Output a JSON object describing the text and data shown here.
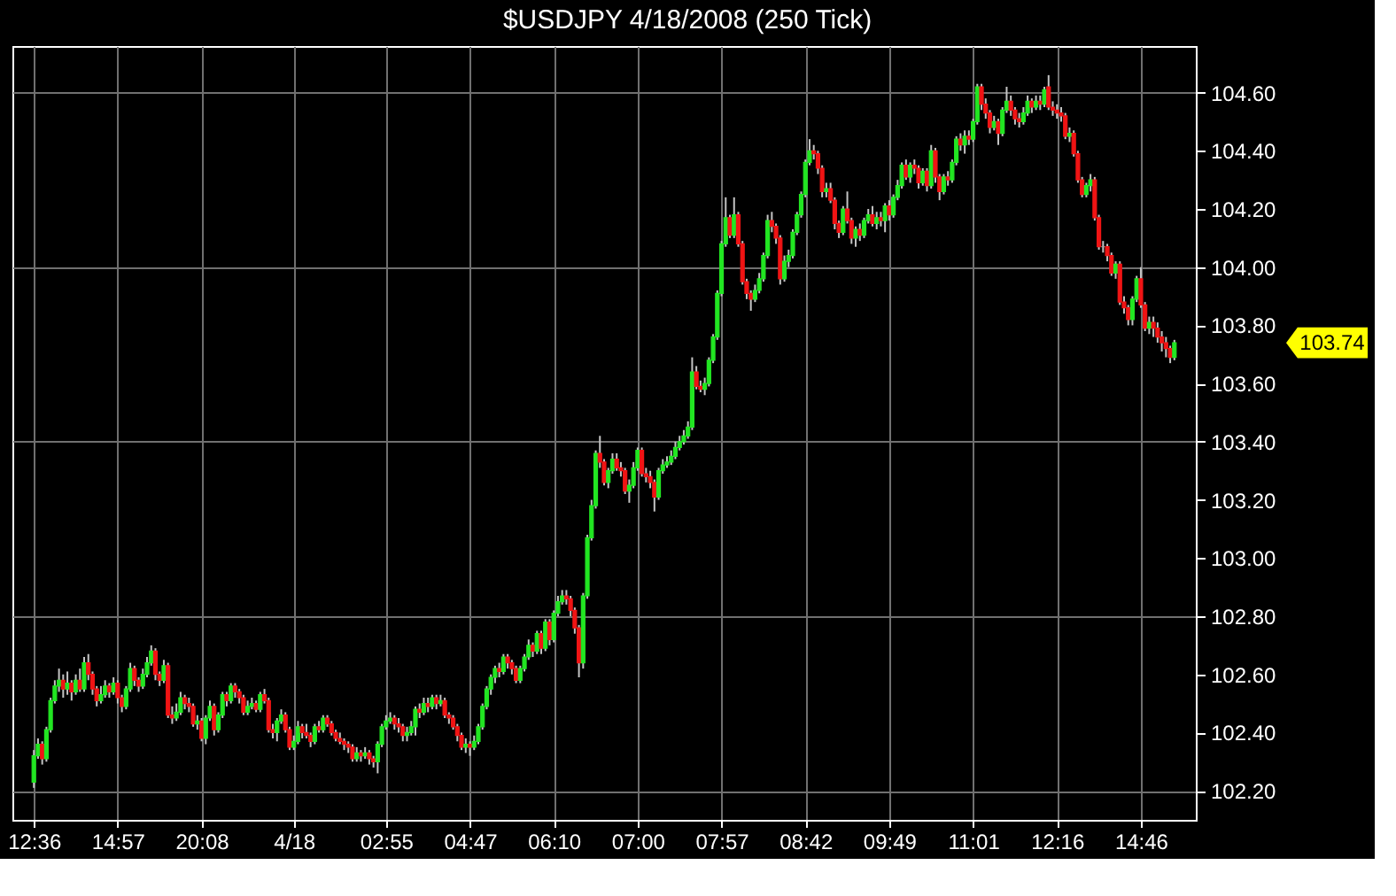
{
  "chart_data": {
    "type": "candlestick",
    "title": "$USDJPY 4/18/2008 (250 Tick)",
    "categories": [
      "12:36",
      null,
      null,
      null,
      null,
      null,
      null,
      null,
      null,
      null,
      null,
      null,
      null,
      null,
      null,
      null,
      null,
      null,
      null,
      null,
      "14:57",
      null,
      null,
      null,
      null,
      null,
      null,
      null,
      null,
      null,
      null,
      null,
      null,
      null,
      null,
      null,
      null,
      null,
      null,
      null,
      "20:08",
      null,
      null,
      null,
      null,
      null,
      null,
      null,
      null,
      null,
      null,
      null,
      null,
      null,
      null,
      null,
      null,
      null,
      null,
      null,
      null,
      null,
      "4/18",
      null,
      null,
      null,
      null,
      null,
      null,
      null,
      null,
      null,
      null,
      null,
      null,
      null,
      null,
      null,
      null,
      null,
      null,
      null,
      null,
      null,
      "02:55",
      null,
      null,
      null,
      null,
      null,
      null,
      null,
      null,
      null,
      null,
      null,
      null,
      null,
      null,
      null,
      null,
      null,
      null,
      null,
      "04:47",
      null,
      null,
      null,
      null,
      null,
      null,
      null,
      null,
      null,
      null,
      null,
      null,
      null,
      null,
      null,
      null,
      null,
      null,
      null,
      "06:10",
      null,
      null,
      null,
      null,
      null,
      null,
      null,
      null,
      null,
      null,
      null,
      null,
      null,
      null,
      null,
      null,
      null,
      null,
      null,
      "07:00",
      null,
      null,
      null,
      null,
      null,
      null,
      null,
      null,
      null,
      null,
      null,
      null,
      null,
      null,
      null,
      null,
      null,
      null,
      null,
      "07:57",
      null,
      null,
      null,
      null,
      null,
      null,
      null,
      null,
      null,
      null,
      null,
      null,
      null,
      null,
      null,
      null,
      null,
      null,
      null,
      "08:42",
      null,
      null,
      null,
      null,
      null,
      null,
      null,
      null,
      null,
      null,
      null,
      null,
      null,
      null,
      null,
      null,
      null,
      null,
      null,
      "09:49",
      null,
      null,
      null,
      null,
      null,
      null,
      null,
      null,
      null,
      null,
      null,
      null,
      null,
      null,
      null,
      null,
      null,
      null,
      null,
      "11:01",
      null,
      null,
      null,
      null,
      null,
      null,
      null,
      null,
      null,
      null,
      null,
      null,
      null,
      null,
      null,
      null,
      null,
      null,
      null,
      "12:16",
      null,
      null,
      null,
      null,
      null,
      null,
      null,
      null,
      null,
      null,
      null,
      null,
      null,
      null,
      null,
      null,
      null,
      null,
      null,
      "14:46",
      null,
      null,
      null,
      null,
      null,
      null,
      null,
      null
    ],
    "ohlc": [
      [
        102.23,
        102.34,
        102.21,
        102.32
      ],
      [
        102.32,
        102.38,
        102.31,
        102.36
      ],
      [
        102.36,
        102.37,
        102.29,
        102.31
      ],
      [
        102.31,
        102.42,
        102.3,
        102.41
      ],
      [
        102.41,
        102.52,
        102.4,
        102.51
      ],
      [
        102.51,
        102.58,
        102.5,
        102.56
      ],
      [
        102.56,
        102.62,
        102.54,
        102.58
      ],
      [
        102.58,
        102.6,
        102.52,
        102.55
      ],
      [
        102.55,
        102.61,
        102.53,
        102.57
      ],
      [
        102.57,
        102.58,
        102.51,
        102.54
      ],
      [
        102.54,
        102.6,
        102.53,
        102.58
      ],
      [
        102.58,
        102.62,
        102.54,
        102.55
      ],
      [
        102.55,
        102.66,
        102.54,
        102.64
      ],
      [
        102.64,
        102.67,
        102.58,
        102.6
      ],
      [
        102.6,
        102.61,
        102.53,
        102.55
      ],
      [
        102.55,
        102.56,
        102.49,
        102.51
      ],
      [
        102.51,
        102.56,
        102.5,
        102.53
      ],
      [
        102.53,
        102.58,
        102.52,
        102.56
      ],
      [
        102.56,
        102.57,
        102.52,
        102.54
      ],
      [
        102.54,
        102.59,
        102.53,
        102.57
      ],
      [
        102.57,
        102.58,
        102.5,
        102.52
      ],
      [
        102.52,
        102.53,
        102.47,
        102.49
      ],
      [
        102.49,
        102.56,
        102.48,
        102.55
      ],
      [
        102.55,
        102.64,
        102.54,
        102.62
      ],
      [
        102.62,
        102.63,
        102.56,
        102.58
      ],
      [
        102.58,
        102.59,
        102.54,
        102.56
      ],
      [
        102.56,
        102.62,
        102.55,
        102.6
      ],
      [
        102.6,
        102.66,
        102.59,
        102.64
      ],
      [
        102.64,
        102.7,
        102.63,
        102.68
      ],
      [
        102.68,
        102.69,
        102.58,
        102.6
      ],
      [
        102.6,
        102.61,
        102.56,
        102.58
      ],
      [
        102.58,
        102.65,
        102.57,
        102.63
      ],
      [
        102.63,
        102.64,
        102.45,
        102.46
      ],
      [
        102.46,
        102.49,
        102.43,
        102.45
      ],
      [
        102.45,
        102.5,
        102.44,
        102.47
      ],
      [
        102.47,
        102.54,
        102.46,
        102.52
      ],
      [
        102.52,
        102.53,
        102.48,
        102.5
      ],
      [
        102.5,
        102.52,
        102.47,
        102.49
      ],
      [
        102.49,
        102.5,
        102.42,
        102.43
      ],
      [
        102.43,
        102.46,
        102.41,
        102.44
      ],
      [
        102.44,
        102.45,
        102.37,
        102.38
      ],
      [
        102.38,
        102.46,
        102.36,
        102.45
      ],
      [
        102.45,
        102.51,
        102.44,
        102.49
      ],
      [
        102.49,
        102.5,
        102.39,
        102.41
      ],
      [
        102.41,
        102.47,
        102.4,
        102.46
      ],
      [
        102.46,
        102.54,
        102.45,
        102.53
      ],
      [
        102.53,
        102.54,
        102.49,
        102.51
      ],
      [
        102.51,
        102.57,
        102.5,
        102.56
      ],
      [
        102.56,
        102.57,
        102.52,
        102.54
      ],
      [
        102.54,
        102.55,
        102.5,
        102.52
      ],
      [
        102.52,
        102.53,
        102.46,
        102.47
      ],
      [
        102.47,
        102.51,
        102.46,
        102.49
      ],
      [
        102.49,
        102.52,
        102.48,
        102.5
      ],
      [
        102.5,
        102.51,
        102.47,
        102.48
      ],
      [
        102.48,
        102.54,
        102.47,
        102.53
      ],
      [
        102.53,
        102.55,
        102.5,
        102.51
      ],
      [
        102.51,
        102.52,
        102.4,
        102.41
      ],
      [
        102.41,
        102.43,
        102.38,
        102.4
      ],
      [
        102.4,
        102.45,
        102.37,
        102.44
      ],
      [
        102.44,
        102.48,
        102.43,
        102.46
      ],
      [
        102.46,
        102.47,
        102.4,
        102.41
      ],
      [
        102.41,
        102.42,
        102.34,
        102.35
      ],
      [
        102.35,
        102.39,
        102.34,
        102.37
      ],
      [
        102.37,
        102.44,
        102.36,
        102.42
      ],
      [
        102.42,
        102.43,
        102.38,
        102.4
      ],
      [
        102.4,
        102.43,
        102.38,
        102.39
      ],
      [
        102.39,
        102.4,
        102.35,
        102.37
      ],
      [
        102.37,
        102.43,
        102.36,
        102.42
      ],
      [
        102.42,
        102.44,
        102.4,
        102.41
      ],
      [
        102.41,
        102.46,
        102.4,
        102.45
      ],
      [
        102.45,
        102.46,
        102.42,
        102.43
      ],
      [
        102.43,
        102.44,
        102.39,
        102.4
      ],
      [
        102.4,
        102.41,
        102.37,
        102.38
      ],
      [
        102.38,
        102.4,
        102.36,
        102.37
      ],
      [
        102.37,
        102.38,
        102.34,
        102.36
      ],
      [
        102.36,
        102.37,
        102.33,
        102.35
      ],
      [
        102.35,
        102.36,
        102.3,
        102.31
      ],
      [
        102.31,
        102.35,
        102.3,
        102.33
      ],
      [
        102.33,
        102.34,
        102.3,
        102.32
      ],
      [
        102.32,
        102.35,
        102.31,
        102.33
      ],
      [
        102.33,
        102.34,
        102.29,
        102.31
      ],
      [
        102.31,
        102.32,
        102.28,
        102.3
      ],
      [
        102.3,
        102.37,
        102.26,
        102.36
      ],
      [
        102.36,
        102.43,
        102.35,
        102.42
      ],
      [
        102.42,
        102.46,
        102.41,
        102.44
      ],
      [
        102.44,
        102.47,
        102.43,
        102.45
      ],
      [
        102.45,
        102.46,
        102.41,
        102.43
      ],
      [
        102.43,
        102.45,
        102.4,
        102.42
      ],
      [
        102.42,
        102.43,
        102.37,
        102.39
      ],
      [
        102.39,
        102.42,
        102.37,
        102.4
      ],
      [
        102.4,
        102.44,
        102.39,
        102.42
      ],
      [
        102.42,
        102.49,
        102.39,
        102.48
      ],
      [
        102.48,
        102.5,
        102.45,
        102.47
      ],
      [
        102.47,
        102.52,
        102.46,
        102.5
      ],
      [
        102.5,
        102.52,
        102.47,
        102.49
      ],
      [
        102.49,
        102.53,
        102.48,
        102.52
      ],
      [
        102.52,
        102.53,
        102.48,
        102.5
      ],
      [
        102.5,
        102.53,
        102.49,
        102.51
      ],
      [
        102.51,
        102.52,
        102.45,
        102.46
      ],
      [
        102.46,
        102.47,
        102.43,
        102.45
      ],
      [
        102.45,
        102.46,
        102.41,
        102.42
      ],
      [
        102.42,
        102.43,
        102.37,
        102.39
      ],
      [
        102.39,
        102.4,
        102.34,
        102.35
      ],
      [
        102.35,
        102.38,
        102.33,
        102.36
      ],
      [
        102.36,
        102.37,
        102.32,
        102.35
      ],
      [
        102.35,
        102.39,
        102.34,
        102.37
      ],
      [
        102.37,
        102.43,
        102.36,
        102.42
      ],
      [
        102.42,
        102.5,
        102.41,
        102.49
      ],
      [
        102.49,
        102.56,
        102.48,
        102.55
      ],
      [
        102.55,
        102.6,
        102.53,
        102.59
      ],
      [
        102.59,
        102.63,
        102.57,
        102.62
      ],
      [
        102.62,
        102.64,
        102.59,
        102.61
      ],
      [
        102.61,
        102.67,
        102.6,
        102.66
      ],
      [
        102.66,
        102.67,
        102.62,
        102.64
      ],
      [
        102.64,
        102.65,
        102.6,
        102.62
      ],
      [
        102.62,
        102.63,
        102.57,
        102.58
      ],
      [
        102.58,
        102.63,
        102.57,
        102.62
      ],
      [
        102.62,
        102.67,
        102.61,
        102.66
      ],
      [
        102.66,
        102.72,
        102.65,
        102.7
      ],
      [
        102.7,
        102.71,
        102.66,
        102.68
      ],
      [
        102.68,
        102.75,
        102.67,
        102.74
      ],
      [
        102.74,
        102.75,
        102.67,
        102.69
      ],
      [
        102.69,
        102.79,
        102.68,
        102.78
      ],
      [
        102.78,
        102.79,
        102.7,
        102.72
      ],
      [
        102.72,
        102.82,
        102.71,
        102.81
      ],
      [
        102.81,
        102.87,
        102.8,
        102.85
      ],
      [
        102.85,
        102.89,
        102.84,
        102.87
      ],
      [
        102.87,
        102.89,
        102.84,
        102.86
      ],
      [
        102.86,
        102.87,
        102.8,
        102.82
      ],
      [
        102.82,
        102.83,
        102.74,
        102.76
      ],
      [
        102.76,
        102.77,
        102.59,
        102.64
      ],
      [
        102.64,
        102.88,
        102.62,
        102.87
      ],
      [
        102.87,
        103.08,
        102.86,
        103.07
      ],
      [
        103.07,
        103.2,
        103.06,
        103.18
      ],
      [
        103.18,
        103.37,
        103.17,
        103.36
      ],
      [
        103.36,
        103.42,
        103.31,
        103.33
      ],
      [
        103.33,
        103.34,
        103.25,
        103.26
      ],
      [
        103.26,
        103.31,
        103.24,
        103.3
      ],
      [
        103.3,
        103.36,
        103.29,
        103.34
      ],
      [
        103.34,
        103.36,
        103.3,
        103.31
      ],
      [
        103.31,
        103.33,
        103.28,
        103.3
      ],
      [
        103.3,
        103.31,
        103.22,
        103.23
      ],
      [
        103.23,
        103.27,
        103.19,
        103.25
      ],
      [
        103.25,
        103.33,
        103.24,
        103.31
      ],
      [
        103.31,
        103.38,
        103.3,
        103.37
      ],
      [
        103.37,
        103.38,
        103.28,
        103.29
      ],
      [
        103.29,
        103.31,
        103.26,
        103.28
      ],
      [
        103.28,
        103.3,
        103.24,
        103.26
      ],
      [
        103.26,
        103.27,
        103.16,
        103.21
      ],
      [
        103.21,
        103.31,
        103.2,
        103.3
      ],
      [
        103.3,
        103.34,
        103.29,
        103.32
      ],
      [
        103.32,
        103.35,
        103.31,
        103.33
      ],
      [
        103.33,
        103.37,
        103.32,
        103.35
      ],
      [
        103.35,
        103.4,
        103.34,
        103.38
      ],
      [
        103.38,
        103.42,
        103.37,
        103.4
      ],
      [
        103.4,
        103.44,
        103.39,
        103.42
      ],
      [
        103.42,
        103.47,
        103.41,
        103.45
      ],
      [
        103.45,
        103.69,
        103.44,
        103.64
      ],
      [
        103.64,
        103.66,
        103.58,
        103.59
      ],
      [
        103.59,
        103.61,
        103.57,
        103.58
      ],
      [
        103.58,
        103.62,
        103.56,
        103.6
      ],
      [
        103.6,
        103.69,
        103.59,
        103.68
      ],
      [
        103.68,
        103.77,
        103.67,
        103.76
      ],
      [
        103.76,
        103.92,
        103.75,
        103.91
      ],
      [
        103.91,
        104.09,
        103.9,
        104.08
      ],
      [
        104.08,
        104.24,
        104.07,
        104.17
      ],
      [
        104.17,
        104.18,
        104.1,
        104.11
      ],
      [
        104.11,
        104.24,
        104.1,
        104.18
      ],
      [
        104.18,
        104.19,
        104.07,
        104.08
      ],
      [
        104.08,
        104.09,
        103.94,
        103.95
      ],
      [
        103.95,
        103.96,
        103.89,
        103.91
      ],
      [
        103.91,
        103.92,
        103.85,
        103.89
      ],
      [
        103.89,
        103.94,
        103.88,
        103.92
      ],
      [
        103.92,
        103.98,
        103.91,
        103.96
      ],
      [
        103.96,
        104.05,
        103.95,
        104.04
      ],
      [
        104.04,
        104.18,
        104.03,
        104.16
      ],
      [
        104.16,
        104.19,
        104.12,
        104.14
      ],
      [
        104.14,
        104.15,
        104.08,
        104.1
      ],
      [
        104.1,
        104.11,
        103.94,
        103.96
      ],
      [
        103.96,
        104.04,
        103.95,
        104.02
      ],
      [
        104.02,
        104.06,
        104.0,
        104.04
      ],
      [
        104.04,
        104.13,
        104.03,
        104.12
      ],
      [
        104.12,
        104.19,
        104.11,
        104.18
      ],
      [
        104.18,
        104.26,
        104.17,
        104.25
      ],
      [
        104.25,
        104.37,
        104.24,
        104.36
      ],
      [
        104.36,
        104.44,
        104.35,
        104.4
      ],
      [
        104.4,
        104.42,
        104.37,
        104.39
      ],
      [
        104.39,
        104.4,
        104.32,
        104.34
      ],
      [
        104.34,
        104.35,
        104.24,
        104.26
      ],
      [
        104.26,
        104.29,
        104.24,
        104.27
      ],
      [
        104.27,
        104.29,
        104.22,
        104.23
      ],
      [
        104.23,
        104.24,
        104.13,
        104.15
      ],
      [
        104.15,
        104.16,
        104.1,
        104.12
      ],
      [
        104.12,
        104.21,
        104.11,
        104.2
      ],
      [
        104.2,
        104.26,
        104.15,
        104.16
      ],
      [
        104.16,
        104.17,
        104.08,
        104.1
      ],
      [
        104.1,
        104.14,
        104.07,
        104.13
      ],
      [
        104.13,
        104.15,
        104.09,
        104.11
      ],
      [
        104.11,
        104.17,
        104.1,
        104.16
      ],
      [
        104.16,
        104.2,
        104.15,
        104.18
      ],
      [
        104.18,
        104.21,
        104.14,
        104.15
      ],
      [
        104.15,
        104.19,
        104.13,
        104.17
      ],
      [
        104.17,
        104.19,
        104.14,
        104.16
      ],
      [
        104.16,
        104.22,
        104.12,
        104.21
      ],
      [
        104.21,
        104.23,
        104.16,
        104.18
      ],
      [
        104.18,
        104.25,
        104.17,
        104.24
      ],
      [
        104.24,
        104.3,
        104.23,
        104.28
      ],
      [
        104.28,
        104.36,
        104.27,
        104.35
      ],
      [
        104.35,
        104.37,
        104.3,
        104.31
      ],
      [
        104.31,
        104.36,
        104.29,
        104.35
      ],
      [
        104.35,
        104.37,
        104.32,
        104.34
      ],
      [
        104.34,
        104.35,
        104.27,
        104.29
      ],
      [
        104.29,
        104.34,
        104.28,
        104.33
      ],
      [
        104.33,
        104.34,
        104.26,
        104.28
      ],
      [
        104.28,
        104.42,
        104.27,
        104.4
      ],
      [
        104.4,
        104.41,
        104.29,
        104.31
      ],
      [
        104.31,
        104.32,
        104.23,
        104.26
      ],
      [
        104.26,
        104.32,
        104.25,
        104.31
      ],
      [
        104.31,
        104.33,
        104.28,
        104.3
      ],
      [
        104.3,
        104.37,
        104.29,
        104.36
      ],
      [
        104.36,
        104.45,
        104.35,
        104.44
      ],
      [
        104.44,
        104.46,
        104.4,
        104.42
      ],
      [
        104.42,
        104.47,
        104.39,
        104.45
      ],
      [
        104.45,
        104.47,
        104.42,
        104.44
      ],
      [
        104.44,
        104.51,
        104.43,
        104.5
      ],
      [
        104.5,
        104.63,
        104.49,
        104.62
      ],
      [
        104.62,
        104.63,
        104.54,
        104.56
      ],
      [
        104.56,
        104.58,
        104.51,
        104.53
      ],
      [
        104.53,
        104.54,
        104.46,
        104.48
      ],
      [
        104.48,
        104.52,
        104.47,
        104.5
      ],
      [
        104.5,
        104.51,
        104.42,
        104.46
      ],
      [
        104.46,
        104.55,
        104.45,
        104.54
      ],
      [
        104.54,
        104.62,
        104.53,
        104.57
      ],
      [
        104.57,
        104.59,
        104.52,
        104.54
      ],
      [
        104.54,
        104.55,
        104.49,
        104.51
      ],
      [
        104.51,
        104.53,
        104.48,
        104.5
      ],
      [
        104.5,
        104.55,
        104.49,
        104.53
      ],
      [
        104.53,
        104.59,
        104.52,
        104.57
      ],
      [
        104.57,
        104.58,
        104.53,
        104.55
      ],
      [
        104.55,
        104.59,
        104.54,
        104.57
      ],
      [
        104.57,
        104.59,
        104.54,
        104.56
      ],
      [
        104.56,
        104.62,
        104.55,
        104.61
      ],
      [
        104.62,
        104.66,
        104.54,
        104.55
      ],
      [
        104.55,
        104.57,
        104.52,
        104.54
      ],
      [
        104.54,
        104.56,
        104.51,
        104.53
      ],
      [
        104.53,
        104.55,
        104.5,
        104.52
      ],
      [
        104.52,
        104.53,
        104.44,
        104.45
      ],
      [
        104.45,
        104.48,
        104.43,
        104.46
      ],
      [
        104.46,
        104.47,
        104.38,
        104.39
      ],
      [
        104.39,
        104.4,
        104.29,
        104.3
      ],
      [
        104.3,
        104.31,
        104.24,
        104.25
      ],
      [
        104.25,
        104.29,
        104.24,
        104.28
      ],
      [
        104.28,
        104.32,
        104.26,
        104.3
      ],
      [
        104.3,
        104.31,
        104.16,
        104.17
      ],
      [
        104.17,
        104.18,
        104.06,
        104.07
      ],
      [
        104.07,
        104.09,
        104.05,
        104.07
      ],
      [
        104.07,
        104.08,
        104.02,
        104.04
      ],
      [
        104.04,
        104.05,
        103.97,
        103.98
      ],
      [
        103.98,
        104.02,
        103.96,
        104.01
      ],
      [
        104.01,
        104.02,
        103.87,
        103.88
      ],
      [
        103.88,
        103.9,
        103.84,
        103.86
      ],
      [
        103.86,
        103.87,
        103.8,
        103.82
      ],
      [
        103.82,
        103.9,
        103.8,
        103.89
      ],
      [
        103.89,
        103.97,
        103.88,
        103.96
      ],
      [
        103.96,
        104.0,
        103.86,
        103.87
      ],
      [
        103.87,
        103.88,
        103.78,
        103.79
      ],
      [
        103.79,
        103.83,
        103.77,
        103.81
      ],
      [
        103.81,
        103.83,
        103.76,
        103.79
      ],
      [
        103.79,
        103.81,
        103.74,
        103.76
      ],
      [
        103.76,
        103.78,
        103.71,
        103.74
      ],
      [
        103.74,
        103.76,
        103.69,
        103.72
      ],
      [
        103.72,
        103.73,
        103.67,
        103.69
      ],
      [
        103.69,
        103.75,
        103.68,
        103.74
      ]
    ],
    "colors": [
      "#22e622",
      "#22e622",
      "#f01414",
      "#22e622",
      "#22e622",
      "#22e622",
      "#22e622",
      "#f01414",
      "#22e622",
      "#f01414",
      "#22e622",
      "#f01414",
      "#22e622",
      "#f01414",
      "#f01414",
      "#f01414",
      "#22e622",
      "#22e622",
      "#f01414",
      "#22e622",
      "#f01414",
      "#f01414",
      "#22e622",
      "#22e622",
      "#f01414",
      "#f01414",
      "#22e622",
      "#22e622",
      "#22e622",
      "#f01414",
      "#f01414",
      "#22e622",
      "#f01414",
      "#f01414",
      "#22e622",
      "#22e622",
      "#f01414",
      "#f01414",
      "#f01414",
      "#22e622",
      "#f01414",
      "#22e622",
      "#22e622",
      "#f01414",
      "#22e622",
      "#22e622",
      "#f01414",
      "#22e622",
      "#f01414",
      "#f01414",
      "#f01414",
      "#22e622",
      "#22e622",
      "#f01414",
      "#22e622",
      "#f01414",
      "#f01414",
      "#f01414",
      "#22e622",
      "#22e622",
      "#f01414",
      "#f01414",
      "#22e622",
      "#22e622",
      "#f01414",
      "#f01414",
      "#f01414",
      "#22e622",
      "#f01414",
      "#22e622",
      "#f01414",
      "#f01414",
      "#f01414",
      "#f01414",
      "#f01414",
      "#f01414",
      "#f01414",
      "#22e622",
      "#f01414",
      "#22e622",
      "#f01414",
      "#f01414",
      "#22e622",
      "#22e622",
      "#22e622",
      "#22e622",
      "#f01414",
      "#f01414",
      "#f01414",
      "#22e622",
      "#22e622",
      "#22e622",
      "#f01414",
      "#22e622",
      "#f01414",
      "#22e622",
      "#f01414",
      "#22e622",
      "#f01414",
      "#f01414",
      "#f01414",
      "#f01414",
      "#f01414",
      "#22e622",
      "#f01414",
      "#22e622",
      "#22e622",
      "#22e622",
      "#22e622",
      "#22e622",
      "#22e622",
      "#f01414",
      "#22e622",
      "#f01414",
      "#f01414",
      "#f01414",
      "#22e622",
      "#22e622",
      "#22e622",
      "#f01414",
      "#22e622",
      "#f01414",
      "#22e622",
      "#f01414",
      "#22e622",
      "#22e622",
      "#22e622",
      "#f01414",
      "#f01414",
      "#f01414",
      "#f01414",
      "#22e622",
      "#22e622",
      "#22e622",
      "#22e622",
      "#f01414",
      "#f01414",
      "#22e622",
      "#22e622",
      "#f01414",
      "#f01414",
      "#f01414",
      "#22e622",
      "#22e622",
      "#22e622",
      "#f01414",
      "#f01414",
      "#f01414",
      "#f01414",
      "#22e622",
      "#22e622",
      "#22e622",
      "#22e622",
      "#22e622",
      "#22e622",
      "#22e622",
      "#22e622",
      "#22e622",
      "#f01414",
      "#f01414",
      "#22e622",
      "#22e622",
      "#22e622",
      "#22e622",
      "#22e622",
      "#22e622",
      "#f01414",
      "#22e622",
      "#f01414",
      "#f01414",
      "#f01414",
      "#f01414",
      "#22e622",
      "#22e622",
      "#22e622",
      "#22e622",
      "#f01414",
      "#f01414",
      "#f01414",
      "#22e622",
      "#22e622",
      "#22e622",
      "#22e622",
      "#22e622",
      "#22e622",
      "#22e622",
      "#f01414",
      "#f01414",
      "#f01414",
      "#22e622",
      "#f01414",
      "#f01414",
      "#f01414",
      "#22e622",
      "#f01414",
      "#f01414",
      "#22e622",
      "#f01414",
      "#22e622",
      "#22e622",
      "#f01414",
      "#22e622",
      "#f01414",
      "#22e622",
      "#f01414",
      "#22e622",
      "#22e622",
      "#22e622",
      "#f01414",
      "#22e622",
      "#f01414",
      "#f01414",
      "#22e622",
      "#f01414",
      "#22e622",
      "#f01414",
      "#f01414",
      "#22e622",
      "#f01414",
      "#22e622",
      "#22e622",
      "#f01414",
      "#22e622",
      "#f01414",
      "#22e622",
      "#22e622",
      "#f01414",
      "#f01414",
      "#f01414",
      "#22e622",
      "#f01414",
      "#22e622",
      "#22e622",
      "#f01414",
      "#f01414",
      "#f01414",
      "#22e622",
      "#22e622",
      "#f01414",
      "#22e622",
      "#f01414",
      "#22e622",
      "#f01414",
      "#f01414",
      "#f01414",
      "#f01414",
      "#f01414",
      "#22e622",
      "#f01414",
      "#f01414",
      "#f01414",
      "#22e622",
      "#22e622",
      "#f01414",
      "#f01414",
      "#a0a0a0",
      "#f01414",
      "#f01414",
      "#22e622",
      "#f01414",
      "#f01414",
      "#f01414",
      "#22e622",
      "#22e622",
      "#f01414",
      "#f01414",
      "#22e622",
      "#f01414",
      "#f01414",
      "#f01414",
      "#f01414",
      "#f01414",
      "#22e622"
    ],
    "ylim": [
      102.1,
      104.76
    ],
    "yticks": [
      {
        "value": 102.2,
        "label": "102.20"
      },
      {
        "value": 102.4,
        "label": "102.40"
      },
      {
        "value": 102.6,
        "label": "102.60"
      },
      {
        "value": 102.8,
        "label": "102.80"
      },
      {
        "value": 103.0,
        "label": "103.00"
      },
      {
        "value": 103.2,
        "label": "103.20"
      },
      {
        "value": 103.4,
        "label": "103.40"
      },
      {
        "value": 103.6,
        "label": "103.60"
      },
      {
        "value": 103.8,
        "label": "103.80"
      },
      {
        "value": 104.0,
        "label": "104.00"
      },
      {
        "value": 104.2,
        "label": "104.20"
      },
      {
        "value": 104.4,
        "label": "104.40"
      },
      {
        "value": 104.6,
        "label": "104.60"
      }
    ],
    "grid": true,
    "annotations": [
      "103.74"
    ]
  }
}
